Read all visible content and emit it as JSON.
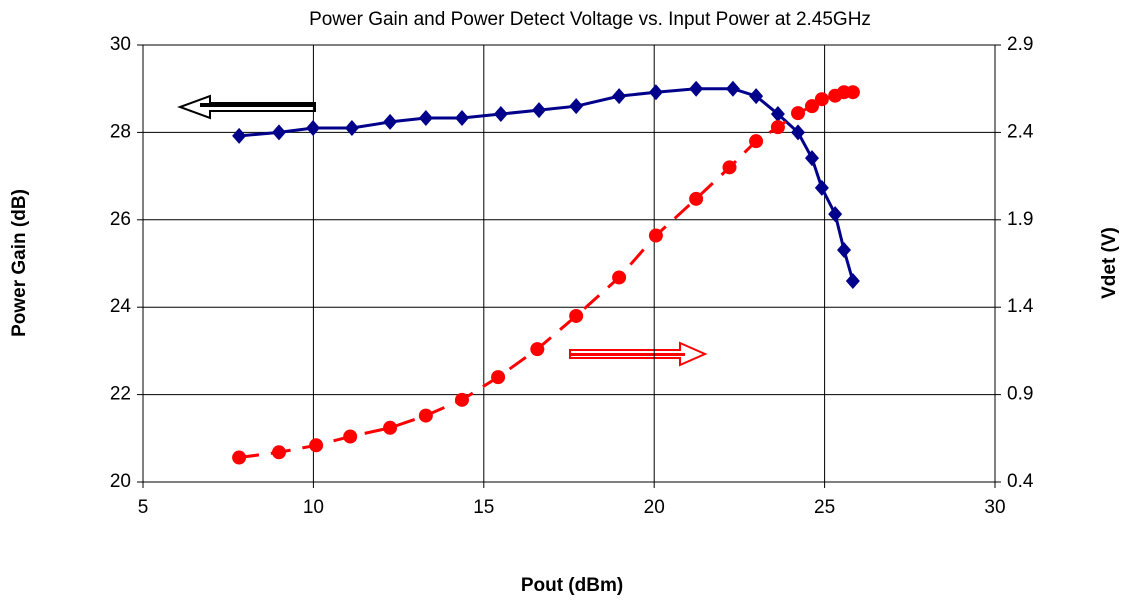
{
  "chart_data": {
    "type": "line",
    "title": "Power Gain and Power Detect Voltage vs. Input Power at 2.45GHz",
    "x_label": "Pout (dBm)",
    "y_label": "Power Gain (dB)",
    "y2_label": "Vdet (V)",
    "xlim": [
      5,
      30
    ],
    "xticks": [
      5,
      10,
      15,
      20,
      25,
      30
    ],
    "ylim": [
      20,
      30
    ],
    "yticks": [
      20,
      22,
      24,
      26,
      28,
      30
    ],
    "y2lim": [
      0.4,
      2.9
    ],
    "y2ticks": [
      0.4,
      0.9,
      1.4,
      1.9,
      2.4,
      2.9
    ],
    "grid": true,
    "series": [
      {
        "name": "Power Gain",
        "color": "#00008b",
        "marker": "diamond",
        "dashed": false,
        "x": [
          7.82,
          8.99,
          9.99,
          11.13,
          12.25,
          13.3,
          14.36,
          15.5,
          16.62,
          17.71,
          18.97,
          20.05,
          21.23,
          22.31,
          22.99,
          23.63,
          24.22,
          24.63,
          24.92,
          25.31,
          25.57,
          25.83
        ],
        "values": [
          27.92,
          28.0,
          28.1,
          28.1,
          28.24,
          28.33,
          28.33,
          28.42,
          28.51,
          28.6,
          28.83,
          28.92,
          29.0,
          29.0,
          28.83,
          28.42,
          28.0,
          27.41,
          26.73,
          26.13,
          25.31,
          24.6
        ]
      },
      {
        "name": "Vdet",
        "color": "#ff0000",
        "marker": "circle",
        "dashed": true,
        "axis": "y2",
        "x": [
          7.82,
          8.99,
          10.08,
          11.08,
          12.25,
          13.3,
          14.36,
          15.42,
          16.57,
          17.71,
          18.97,
          20.05,
          21.23,
          22.21,
          22.99,
          23.63,
          24.22,
          24.63,
          24.92,
          25.31,
          25.57,
          25.83
        ],
        "values": [
          0.54,
          0.57,
          0.61,
          0.66,
          0.71,
          0.78,
          0.87,
          1.0,
          1.16,
          1.35,
          1.57,
          1.81,
          2.02,
          2.2,
          2.35,
          2.43,
          2.51,
          2.55,
          2.59,
          2.61,
          2.63,
          2.63
        ]
      }
    ]
  }
}
